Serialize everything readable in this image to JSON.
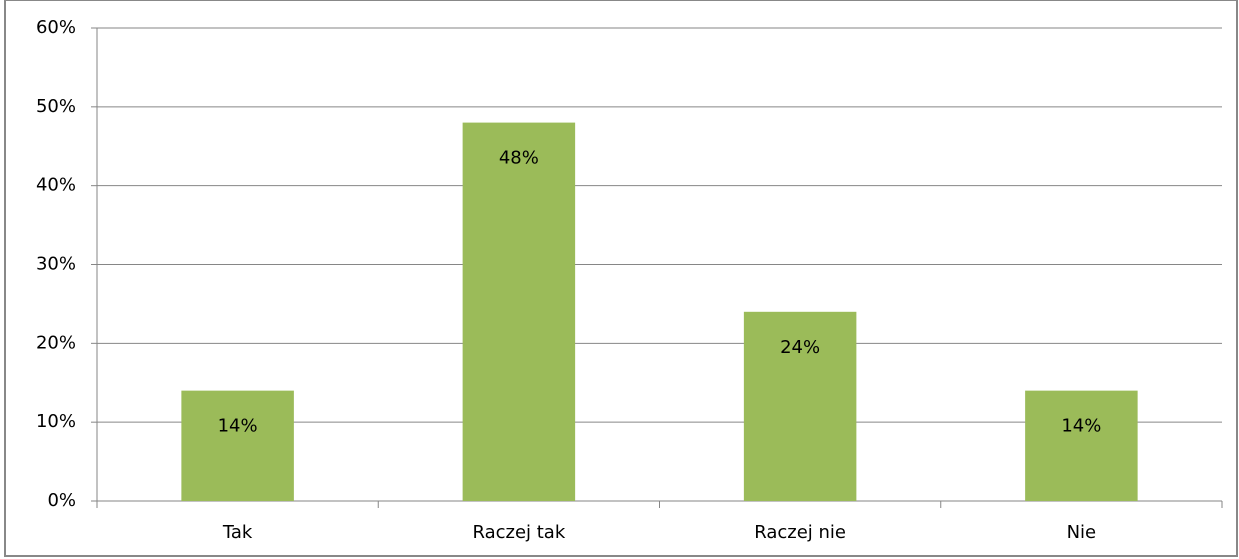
{
  "chart_data": {
    "type": "bar",
    "categories": [
      "Tak",
      "Raczej tak",
      "Raczej nie",
      "Nie"
    ],
    "values": [
      14,
      48,
      24,
      14
    ],
    "value_labels": [
      "14%",
      "48%",
      "24%",
      "14%"
    ],
    "color": "#9bbb59",
    "ylim": [
      0,
      60
    ],
    "yticks": [
      {
        "value": 0,
        "label": "0%"
      },
      {
        "value": 10,
        "label": "10%"
      },
      {
        "value": 20,
        "label": "20%"
      },
      {
        "value": 30,
        "label": "30%"
      },
      {
        "value": 40,
        "label": "40%"
      },
      {
        "value": 50,
        "label": "50%"
      },
      {
        "value": 60,
        "label": "60%"
      }
    ],
    "grid": true
  }
}
